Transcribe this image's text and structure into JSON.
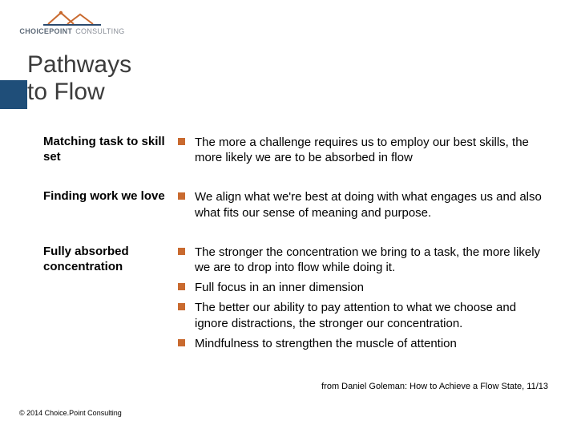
{
  "logo": {
    "brand": "CHOICEPOINT",
    "suffix": "CONSULTING",
    "brand_color": "#5e6a78",
    "suffix_color": "#8a8f98",
    "peak_color": "#c96a2f",
    "base_color": "#2a4a6e"
  },
  "title": {
    "text": "Pathways to Flow",
    "band_color": "#1f4e79",
    "title_color": "#3b3b3b",
    "fontsize": 30
  },
  "bullet_style": {
    "color": "#c96a2f",
    "size": 9
  },
  "rows": [
    {
      "label": "Matching task to skill set",
      "items": [
        "The more a challenge requires us to employ our best skills, the more likely we are to be absorbed in flow"
      ]
    },
    {
      "label": "Finding work we love",
      "items": [
        "We align what we're best at doing with what engages us and also what fits our sense of meaning and purpose."
      ]
    },
    {
      "label": "Fully absorbed concentration",
      "items": [
        "The stronger the concentration we bring to a task, the more likely we are to drop into flow while doing it.",
        "Full focus in an inner dimension",
        "The better our ability to pay attention to what we choose and ignore distractions, the stronger our concentration.",
        "Mindfulness to strengthen the muscle of attention"
      ]
    }
  ],
  "attribution": "from Daniel Goleman: How to Achieve a Flow State, 11/13",
  "copyright": "© 2014 Choice.Point Consulting",
  "typography": {
    "label_fontsize": 15,
    "body_fontsize": 15,
    "attribution_fontsize": 11,
    "copyright_fontsize": 9
  }
}
